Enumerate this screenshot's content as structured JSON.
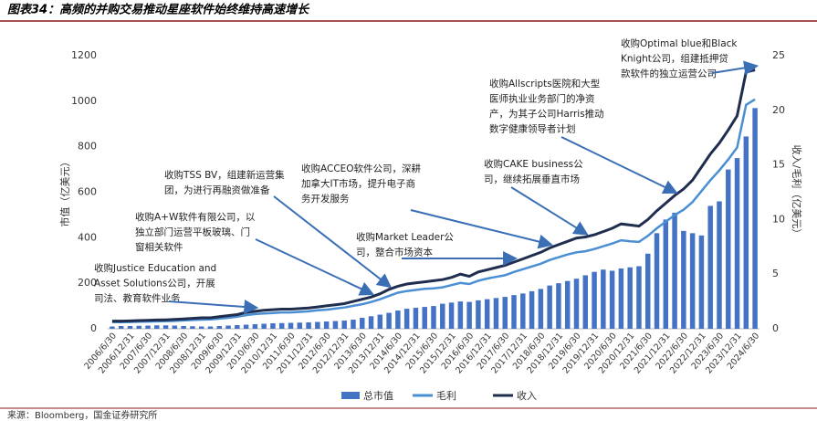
{
  "chart_data": {
    "type": "bar_line",
    "title": "图表34：高频的并购交易推动星座软件始终维持高速增长",
    "source": "来源：Bloomberg，国金证券研究所",
    "y_label": "市值（亿美元）",
    "y2_label": "收入/毛利（亿美元）",
    "categories": [
      "2006/6/30",
      null,
      "2006/12/31",
      null,
      "2007/6/30",
      null,
      "2007/12/31",
      null,
      "2008/6/30",
      null,
      "2008/12/31",
      null,
      "2009/6/30",
      null,
      "2009/12/31",
      null,
      "2010/6/30",
      null,
      "2010/12/31",
      null,
      "2011/6/30",
      null,
      "2011/12/31",
      null,
      "2012/6/30",
      null,
      "2012/12/31",
      null,
      "2013/6/30",
      null,
      "2013/12/31",
      null,
      "2014/6/30",
      null,
      "2014/12/31",
      null,
      "2015/6/30",
      null,
      "2015/12/31",
      null,
      "2016/6/30",
      null,
      "2016/12/31",
      null,
      "2017/6/30",
      null,
      "2017/12/31",
      null,
      "2018/6/30",
      null,
      "2018/12/31",
      null,
      "2019/6/30",
      null,
      "2019/12/31",
      null,
      "2020/6/30",
      null,
      "2020/12/31",
      null,
      "2021/6/30",
      null,
      "2021/12/31",
      null,
      "2022/6/30",
      null,
      "2022/12/31",
      null,
      "2023/6/30",
      null,
      "2023/12/31",
      null,
      "2024/6/30"
    ],
    "series": [
      {
        "name": "总市值",
        "kind": "bar",
        "color": "#4472c4",
        "values": [
          10,
          12,
          12,
          13,
          14,
          15,
          15,
          14,
          12,
          11,
          10,
          10,
          12,
          14,
          16,
          18,
          20,
          22,
          24,
          25,
          26,
          27,
          28,
          30,
          32,
          34,
          36,
          40,
          48,
          55,
          62,
          70,
          80,
          88,
          92,
          96,
          100,
          110,
          115,
          120,
          118,
          125,
          130,
          135,
          140,
          148,
          155,
          165,
          175,
          190,
          200,
          210,
          220,
          235,
          250,
          260,
          255,
          265,
          270,
          275,
          330,
          420,
          480,
          510,
          430,
          420,
          410,
          540,
          560,
          700,
          750,
          845,
          970
        ]
      },
      {
        "name": "毛利",
        "kind": "line",
        "axis": "y2",
        "color": "#4a8fd4",
        "values": [
          0.6,
          0.6,
          0.62,
          0.64,
          0.66,
          0.68,
          0.7,
          0.72,
          0.76,
          0.8,
          0.84,
          0.85,
          0.93,
          1.0,
          1.1,
          1.25,
          1.35,
          1.4,
          1.45,
          1.5,
          1.5,
          1.55,
          1.6,
          1.7,
          1.75,
          1.85,
          1.95,
          2.1,
          2.25,
          2.45,
          2.7,
          3.0,
          3.3,
          3.45,
          3.55,
          3.65,
          3.7,
          3.8,
          4.0,
          4.2,
          4.1,
          4.4,
          4.6,
          4.75,
          4.9,
          5.2,
          5.45,
          5.7,
          5.95,
          6.3,
          6.55,
          6.8,
          7.0,
          7.1,
          7.3,
          7.55,
          7.8,
          8.1,
          8.0,
          7.95,
          8.5,
          9.2,
          9.8,
          10.4,
          10.9,
          11.6,
          12.6,
          13.6,
          14.5,
          15.5,
          16.6,
          20.5,
          21.0
        ]
      },
      {
        "name": "收入",
        "kind": "line",
        "axis": "y2",
        "color": "#1f2d4f",
        "values": [
          0.7,
          0.7,
          0.72,
          0.75,
          0.78,
          0.8,
          0.82,
          0.85,
          0.9,
          0.95,
          1.0,
          1.0,
          1.1,
          1.2,
          1.3,
          1.5,
          1.6,
          1.7,
          1.75,
          1.8,
          1.8,
          1.85,
          1.9,
          2.0,
          2.1,
          2.2,
          2.3,
          2.5,
          2.7,
          2.9,
          3.2,
          3.6,
          3.9,
          4.1,
          4.2,
          4.3,
          4.4,
          4.5,
          4.7,
          5.0,
          4.8,
          5.2,
          5.4,
          5.6,
          5.8,
          6.1,
          6.4,
          6.7,
          7.0,
          7.4,
          7.7,
          8.0,
          8.3,
          8.4,
          8.6,
          8.9,
          9.2,
          9.6,
          9.5,
          9.4,
          10.0,
          10.8,
          11.5,
          12.2,
          12.8,
          13.6,
          14.8,
          16.0,
          17.0,
          18.2,
          19.5,
          23.5,
          23.7
        ]
      }
    ],
    "ylim": [
      0,
      1200
    ],
    "yticks": [
      0,
      200,
      400,
      600,
      800,
      1000,
      1200
    ],
    "y2lim": [
      0,
      25
    ],
    "y2ticks": [
      0,
      5,
      10,
      15,
      20,
      25
    ],
    "legend": "bottom",
    "annotations": [
      [
        "收购Justice Education and",
        "Asset Solutions公司，开展",
        "司法、教育软件业务"
      ],
      [
        "收购A+W软件有限公司，以",
        "独立部门运营平板玻璃、门",
        "窗相关软件"
      ],
      [
        "收购TSS BV，组建新运营集",
        "团，为进行再融资做准备"
      ],
      [
        "收购ACCEO软件公司，深耕",
        "加拿大IT市场，提升电子商",
        "务开发服务"
      ],
      [
        "收购Market Leader公",
        "司，整合市场资本"
      ],
      [
        "收购CAKE business公",
        "司，继续拓展垂直市场"
      ],
      [
        "收购Allscripts医院和大型",
        "医师执业业务部门的净资",
        "产，为其子公司Harris推动",
        "数字健康领导者计划"
      ],
      [
        "收购Optimal blue和Black",
        "Knight公司，组建抵押贷",
        "款软件的独立运营公司"
      ]
    ]
  }
}
